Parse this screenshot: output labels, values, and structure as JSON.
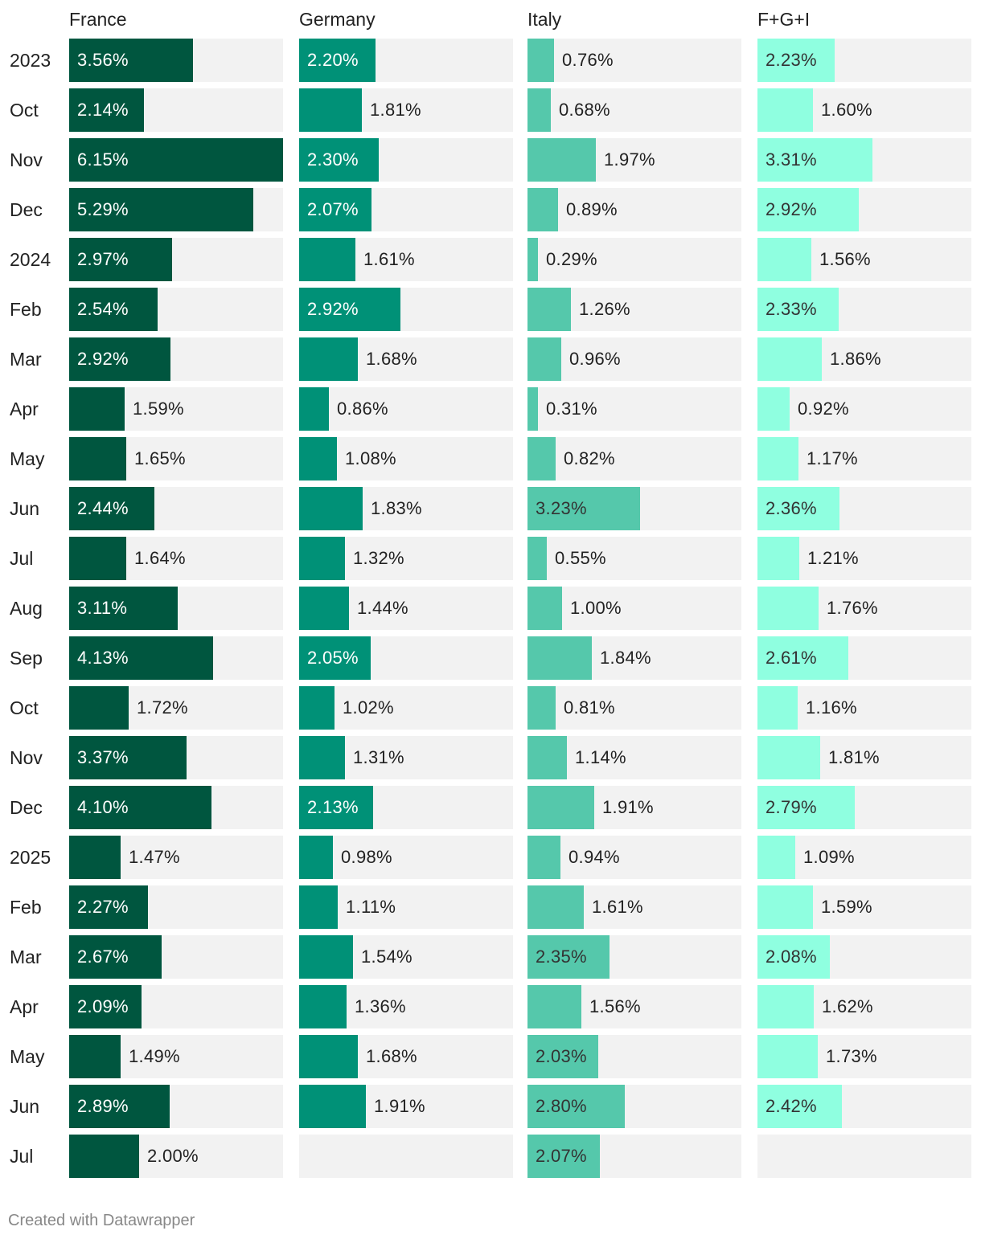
{
  "colors": {
    "France": "#00563f",
    "Germany": "#009177",
    "Italy": "#55c8ab",
    "FGI": "#8fffe0",
    "track": "#f2f2f2"
  },
  "footer": "Created with Datawrapper",
  "chart_data": {
    "type": "bar",
    "orientation": "horizontal",
    "categories": [
      "2023",
      "Oct",
      "Nov",
      "Dec",
      "2024",
      "Feb",
      "Mar",
      "Apr",
      "May",
      "Jun",
      "Jul",
      "Aug",
      "Sep",
      "Oct",
      "Nov",
      "Dec",
      "2025",
      "Feb",
      "Mar",
      "Apr",
      "May",
      "Jun",
      "Jul"
    ],
    "xlim": [
      0,
      6.15
    ],
    "series": [
      {
        "name": "France",
        "color_key": "France",
        "label_inside_dark": true,
        "values": [
          3.56,
          2.14,
          6.15,
          5.29,
          2.97,
          2.54,
          2.92,
          1.59,
          1.65,
          2.44,
          1.64,
          3.11,
          4.13,
          1.72,
          3.37,
          4.1,
          1.47,
          2.27,
          2.67,
          2.09,
          1.49,
          2.89,
          2.0
        ],
        "labels": [
          "3.56%",
          "2.14%",
          "6.15%",
          "5.29%",
          "2.97%",
          "2.54%",
          "2.92%",
          "1.59%",
          "1.65%",
          "2.44%",
          "1.64%",
          "3.11%",
          "4.13%",
          "1.72%",
          "3.37%",
          "4.10%",
          "1.47%",
          "2.27%",
          "2.67%",
          "2.09%",
          "1.49%",
          "2.89%",
          "2.00%"
        ]
      },
      {
        "name": "Germany",
        "color_key": "Germany",
        "label_inside_dark": true,
        "values": [
          2.2,
          1.81,
          2.3,
          2.07,
          1.61,
          2.92,
          1.68,
          0.86,
          1.08,
          1.83,
          1.32,
          1.44,
          2.05,
          1.02,
          1.31,
          2.13,
          0.98,
          1.11,
          1.54,
          1.36,
          1.68,
          1.91,
          null
        ],
        "labels": [
          "2.20%",
          "1.81%",
          "2.30%",
          "2.07%",
          "1.61%",
          "2.92%",
          "1.68%",
          "0.86%",
          "1.08%",
          "1.83%",
          "1.32%",
          "1.44%",
          "2.05%",
          "1.02%",
          "1.31%",
          "2.13%",
          "0.98%",
          "1.11%",
          "1.54%",
          "1.36%",
          "1.68%",
          "1.91%",
          ""
        ]
      },
      {
        "name": "Italy",
        "color_key": "Italy",
        "label_inside_dark": false,
        "values": [
          0.76,
          0.68,
          1.97,
          0.89,
          0.29,
          1.26,
          0.96,
          0.31,
          0.82,
          3.23,
          0.55,
          1.0,
          1.84,
          0.81,
          1.14,
          1.91,
          0.94,
          1.61,
          2.35,
          1.56,
          2.03,
          2.8,
          2.07
        ],
        "labels": [
          "0.76%",
          "0.68%",
          "1.97%",
          "0.89%",
          "0.29%",
          "1.26%",
          "0.96%",
          "0.31%",
          "0.82%",
          "3.23%",
          "0.55%",
          "1.00%",
          "1.84%",
          "0.81%",
          "1.14%",
          "1.91%",
          "0.94%",
          "1.61%",
          "2.35%",
          "1.56%",
          "2.03%",
          "2.80%",
          "2.07%"
        ]
      },
      {
        "name": "F+G+I",
        "color_key": "FGI",
        "label_inside_dark": false,
        "values": [
          2.23,
          1.6,
          3.31,
          2.92,
          1.56,
          2.33,
          1.86,
          0.92,
          1.17,
          2.36,
          1.21,
          1.76,
          2.61,
          1.16,
          1.81,
          2.79,
          1.09,
          1.59,
          2.08,
          1.62,
          1.73,
          2.42,
          null
        ],
        "labels": [
          "2.23%",
          "1.60%",
          "3.31%",
          "2.92%",
          "1.56%",
          "2.33%",
          "1.86%",
          "0.92%",
          "1.17%",
          "2.36%",
          "1.21%",
          "1.76%",
          "2.61%",
          "1.16%",
          "1.81%",
          "2.79%",
          "1.09%",
          "1.59%",
          "2.08%",
          "1.62%",
          "1.73%",
          "2.42%",
          ""
        ]
      }
    ]
  }
}
